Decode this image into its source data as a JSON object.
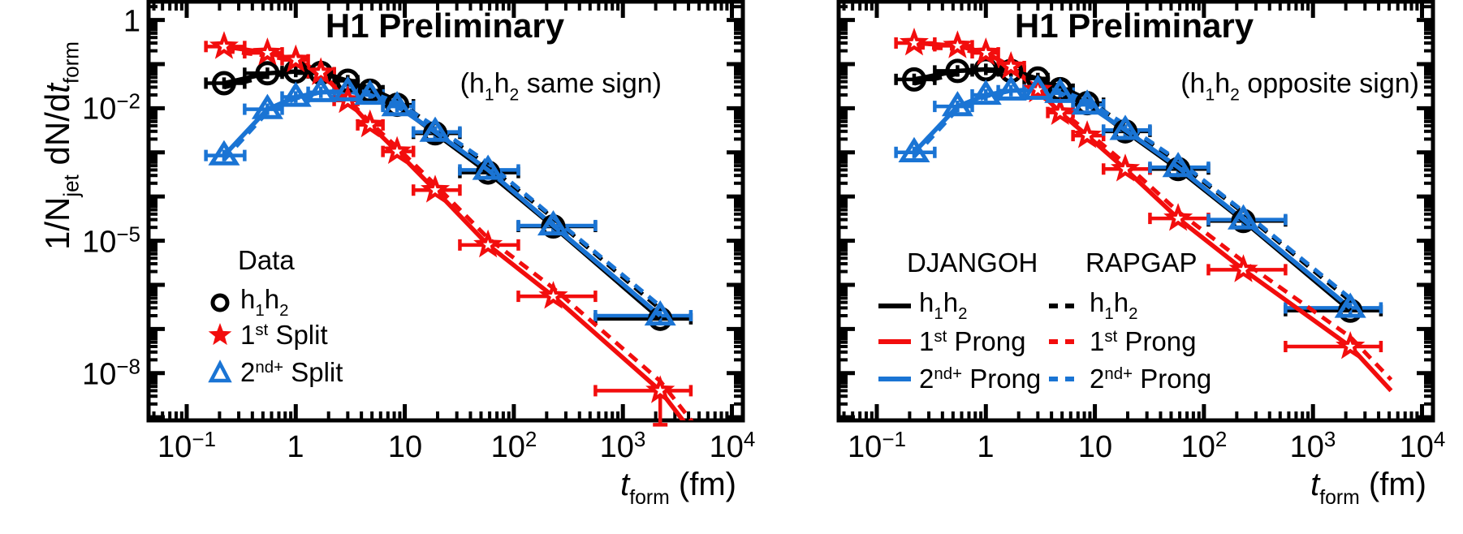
{
  "colors": {
    "black": "#000000",
    "red": "#f20d0d",
    "blue": "#1a74d4",
    "background": "#ffffff"
  },
  "axes": {
    "x_title": {
      "var": "t",
      "sub": "form",
      "rest": " (fm)"
    },
    "y_title": {
      "p1": "1/N",
      "sub1": "jet",
      "p2": " dN/d",
      "var": "t",
      "sub2": "form"
    },
    "x_ticks": [
      {
        "v": 0.1,
        "base": "10",
        "exp": "−1"
      },
      {
        "v": 1,
        "base": "1",
        "exp": ""
      },
      {
        "v": 10,
        "base": "10",
        "exp": ""
      },
      {
        "v": 100,
        "base": "10",
        "exp": "2"
      },
      {
        "v": 1000,
        "base": "10",
        "exp": "3"
      },
      {
        "v": 10000,
        "base": "10",
        "exp": "4"
      }
    ],
    "y_ticks": [
      {
        "v": 1,
        "base": "1",
        "exp": ""
      },
      {
        "v": 0.01,
        "base": "10",
        "exp": "−2"
      },
      {
        "v": 1e-05,
        "base": "10",
        "exp": "−5"
      },
      {
        "v": 1e-08,
        "base": "10",
        "exp": "−8"
      }
    ]
  },
  "panels": [
    {
      "title": "H1 Preliminary",
      "subtitle": {
        "p1": "(h",
        "s1": "1",
        "p2": "h",
        "s2": "2",
        "p3": " same sign)"
      },
      "legend": {
        "header": "Data",
        "entries": [
          {
            "marker": "circle",
            "color": "#000000",
            "label": {
              "p1": "h",
              "s1": "1",
              "p2": "h",
              "s2": "2"
            }
          },
          {
            "marker": "star",
            "color": "#f20d0d",
            "label": {
              "p1": "1",
              "sup": "st",
              "p3": " Split"
            }
          },
          {
            "marker": "triangle",
            "color": "#1a74d4",
            "label": {
              "p1": "2",
              "sup": "nd+",
              "p3": " Split"
            }
          }
        ]
      }
    },
    {
      "title": "H1 Preliminary",
      "subtitle": {
        "p1": "(h",
        "s1": "1",
        "p2": "h",
        "s2": "2",
        "p3": " opposite sign)"
      },
      "legend": {
        "headers": [
          "DJANGOH",
          "RAPGAP"
        ],
        "rows": [
          {
            "color": "#000000",
            "label": {
              "p1": "h",
              "s1": "1",
              "p2": "h",
              "s2": "2"
            }
          },
          {
            "color": "#f20d0d",
            "label": {
              "p1": "1",
              "sup": "st",
              "p3": " Prong"
            }
          },
          {
            "color": "#1a74d4",
            "label": {
              "p1": "2",
              "sup": "nd+",
              "p3": " Prong"
            }
          }
        ]
      }
    }
  ],
  "chart_data": [
    {
      "type": "scatter",
      "title": "H1 Preliminary (h1h2 same sign)",
      "xlabel": "t_form (fm)",
      "ylabel": "1/N_jet dN/dt_form",
      "x_scale": "log",
      "y_scale": "log",
      "grid": false,
      "xlim": [
        0.0447,
        12600
      ],
      "ylim": [
        8.5e-10,
        2.6
      ],
      "x": [
        0.22,
        0.55,
        1.0,
        1.7,
        3.0,
        4.8,
        8.5,
        19,
        58,
        230,
        2200
      ],
      "bin_edges": [
        0.15,
        0.34,
        0.75,
        1.3,
        2.25,
        3.7,
        6.3,
        12,
        32,
        110,
        560,
        4200
      ],
      "series": [
        {
          "name": "h1h2 (Data)",
          "marker": "circle",
          "color": "#000000",
          "values": [
            0.037,
            0.062,
            0.068,
            0.063,
            0.042,
            0.025,
            0.012,
            0.0027,
            0.00035,
            2.1e-05,
            1.7e-07
          ]
        },
        {
          "name": "1st Split (Data)",
          "marker": "star",
          "color": "#f20d0d",
          "lower_limit_bar_on_last_point": true,
          "extend_to": [
            5200,
            2.5e-10
          ],
          "values": [
            0.25,
            0.18,
            0.125,
            0.064,
            0.015,
            0.0042,
            0.00105,
            0.00014,
            8e-06,
            5.5e-07,
            4e-09
          ]
        },
        {
          "name": "2nd+ Split (Data)",
          "marker": "triangle",
          "color": "#1a74d4",
          "values": [
            0.00085,
            0.0095,
            0.018,
            0.023,
            0.024,
            0.02,
            0.011,
            0.0029,
            0.0004,
            2.2e-05,
            2e-07
          ]
        }
      ],
      "lines": {
        "solid": "DJANGOH",
        "dashed": "RAPGAP"
      },
      "legend_position": "lower-left"
    },
    {
      "type": "scatter",
      "title": "H1 Preliminary (h1h2 opposite sign)",
      "xlabel": "t_form (fm)",
      "ylabel": "1/N_jet dN/dt_form",
      "x_scale": "log",
      "y_scale": "log",
      "grid": false,
      "xlim": [
        0.0447,
        12600
      ],
      "ylim": [
        8.5e-10,
        2.6
      ],
      "x": [
        0.22,
        0.55,
        1.0,
        1.7,
        3.0,
        4.8,
        8.5,
        19,
        58,
        230,
        2200
      ],
      "bin_edges": [
        0.15,
        0.34,
        0.75,
        1.3,
        2.25,
        3.7,
        6.3,
        12,
        32,
        110,
        560,
        4200
      ],
      "series": [
        {
          "name": "h1h2",
          "marker": "circle",
          "color": "#000000",
          "values": [
            0.045,
            0.07,
            0.076,
            0.07,
            0.047,
            0.027,
            0.013,
            0.003,
            0.00042,
            2.8e-05,
            2.6e-07
          ]
        },
        {
          "name": "1st Prong",
          "marker": "star",
          "color": "#f20d0d",
          "extend_to": [
            5200,
            4e-09
          ],
          "values": [
            0.3,
            0.26,
            0.18,
            0.088,
            0.026,
            0.008,
            0.0024,
            0.00042,
            3.2e-05,
            2.2e-06,
            4e-08
          ]
        },
        {
          "name": "2nd+ Prong",
          "marker": "triangle",
          "color": "#1a74d4",
          "values": [
            0.001,
            0.011,
            0.02,
            0.025,
            0.026,
            0.022,
            0.012,
            0.0032,
            0.00046,
            3e-05,
            3e-07
          ]
        }
      ],
      "lines": {
        "solid": "DJANGOH",
        "dashed": "RAPGAP"
      },
      "legend_position": "lower-left"
    }
  ]
}
